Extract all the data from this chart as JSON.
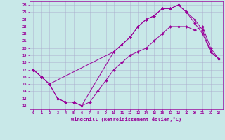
{
  "xlabel": "Windchill (Refroidissement éolien,°C)",
  "bg_color": "#c8e8e8",
  "line_color": "#990099",
  "grid_color": "#aaaacc",
  "xlim": [
    -0.5,
    23.5
  ],
  "ylim": [
    11.5,
    26.5
  ],
  "xticks": [
    0,
    1,
    2,
    3,
    4,
    5,
    6,
    7,
    8,
    9,
    10,
    11,
    12,
    13,
    14,
    15,
    16,
    17,
    18,
    19,
    20,
    21,
    22,
    23
  ],
  "yticks": [
    12,
    13,
    14,
    15,
    16,
    17,
    18,
    19,
    20,
    21,
    22,
    23,
    24,
    25,
    26
  ],
  "line1_x": [
    0,
    1,
    2,
    3,
    4,
    5,
    6,
    7,
    8,
    9,
    10,
    11,
    12,
    13,
    14,
    15,
    16,
    17,
    18,
    19,
    20,
    21,
    22,
    23
  ],
  "line1_y": [
    17,
    16,
    15,
    13,
    12.5,
    12.5,
    12,
    12.5,
    14,
    15.5,
    17,
    18,
    19,
    19.5,
    20,
    21,
    22,
    23,
    23,
    23,
    22.5,
    23,
    20,
    18.5
  ],
  "line2_x": [
    0,
    1,
    2,
    3,
    4,
    5,
    6,
    10,
    11,
    12,
    13,
    14,
    15,
    16,
    17,
    18,
    19,
    20,
    21,
    22,
    23
  ],
  "line2_y": [
    17,
    16,
    15,
    13,
    12.5,
    12.5,
    12,
    19.5,
    20.5,
    21.5,
    23,
    24,
    24.5,
    25.5,
    25.5,
    26,
    25,
    24,
    22.5,
    19.5,
    18.5
  ],
  "line3_x": [
    0,
    1,
    2,
    10,
    11,
    12,
    13,
    14,
    15,
    16,
    17,
    18,
    19,
    20,
    21,
    22,
    23
  ],
  "line3_y": [
    17,
    16,
    15,
    19.5,
    20.5,
    21.5,
    23,
    24,
    24.5,
    25.5,
    25.5,
    26,
    25,
    23.5,
    22,
    19.5,
    18.5
  ]
}
